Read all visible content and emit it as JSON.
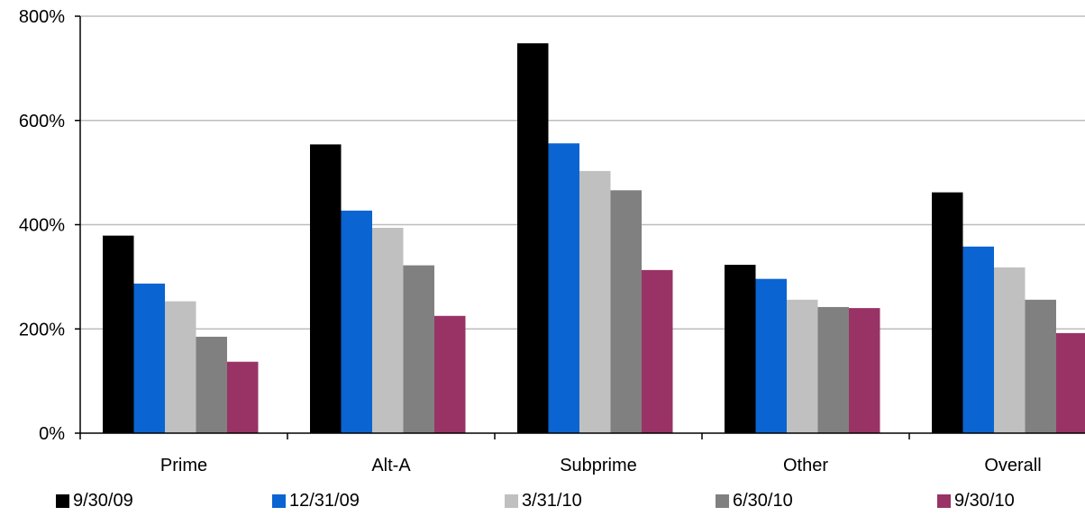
{
  "chart_data": {
    "type": "bar",
    "title": "",
    "xlabel": "",
    "ylabel": "",
    "categories": [
      "Prime",
      "Alt-A",
      "Subprime",
      "Other",
      "Overall"
    ],
    "series": [
      {
        "name": "9/30/09",
        "color": "#000000",
        "values": [
          379,
          554,
          748,
          323,
          462
        ]
      },
      {
        "name": "12/31/09",
        "color": "#0a64d2",
        "values": [
          287,
          427,
          556,
          296,
          358
        ]
      },
      {
        "name": "3/31/10",
        "color": "#c0c0c0",
        "values": [
          253,
          394,
          503,
          256,
          318
        ]
      },
      {
        "name": "6/30/10",
        "color": "#808080",
        "values": [
          185,
          322,
          466,
          242,
          256
        ]
      },
      {
        "name": "9/30/10",
        "color": "#993366",
        "values": [
          137,
          225,
          313,
          240,
          192
        ]
      }
    ],
    "ylim": [
      0,
      800
    ],
    "yticks": [
      0,
      200,
      400,
      600,
      800
    ],
    "ytick_labels": [
      "0%",
      "200%",
      "400%",
      "600%",
      "800%"
    ],
    "grid": true,
    "legend_position": "bottom"
  }
}
